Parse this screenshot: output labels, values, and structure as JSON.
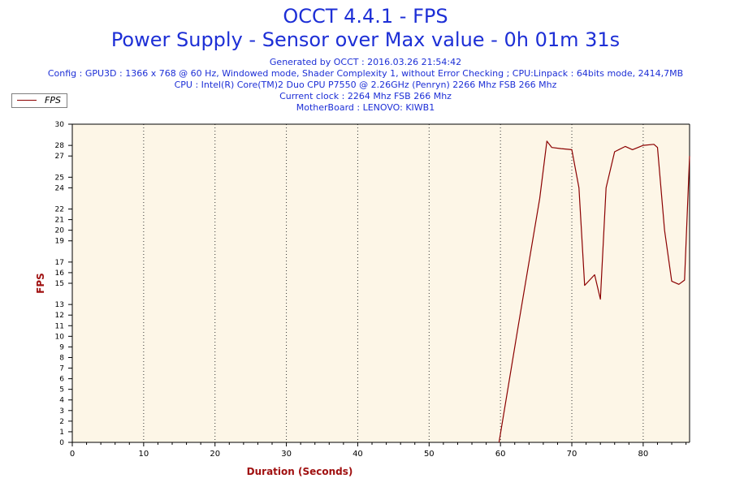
{
  "header": {
    "title": "OCCT 4.4.1 - FPS",
    "subtitle": "Power Supply - Sensor over Max value - 0h 01m 31s",
    "info_lines": [
      "Generated by OCCT : 2016.03.26 21:54:42",
      "Config : GPU3D : 1366 x 768 @ 60 Hz, Windowed mode, Shader Complexity 1, without Error Checking ; CPU:Linpack : 64bits mode, 2414,7MB",
      "CPU : Intel(R) Core(TM)2 Duo CPU P7550 @ 2.26GHz (Penryn) 2266 Mhz FSB 266 Mhz",
      "Current clock : 2264 Mhz FSB 266 Mhz",
      "MotherBoard : LENOVO: KIWB1"
    ]
  },
  "colors": {
    "title": "#1d2fd6",
    "axis_label": "#a01010",
    "series": "#8b0000",
    "plot_background": "#fdf6e7"
  },
  "chart_data": {
    "type": "line",
    "title": "OCCT 4.4.1 - FPS",
    "xlabel": "Duration (Seconds)",
    "ylabel": "FPS",
    "xlim": [
      0,
      86.5
    ],
    "ylim": [
      0,
      30
    ],
    "x_ticks": [
      0,
      10,
      20,
      30,
      40,
      50,
      60,
      70,
      80
    ],
    "y_ticks": [
      0,
      1,
      2,
      3,
      4,
      5,
      6,
      7,
      8,
      9,
      10,
      11,
      12,
      13,
      15,
      16,
      17,
      19,
      20,
      21,
      22,
      24,
      25,
      27,
      28,
      30
    ],
    "grid": "vertical dotted",
    "legend": "top-left",
    "series": [
      {
        "name": "FPS",
        "x": [
          59.8,
          62.5,
          65.5,
          66.5,
          67.2,
          68.5,
          70,
          71,
          71.8,
          73.2,
          74,
          74.8,
          76,
          77.5,
          78.5,
          80,
          81.5,
          82,
          83,
          84,
          85,
          85.8,
          86.5
        ],
        "y": [
          0,
          11,
          23,
          28.4,
          27.8,
          27.7,
          27.6,
          24,
          14.8,
          15.8,
          13.5,
          24,
          27.4,
          27.9,
          27.6,
          28.0,
          28.1,
          27.8,
          20,
          15.2,
          14.9,
          15.3,
          27
        ]
      }
    ]
  }
}
